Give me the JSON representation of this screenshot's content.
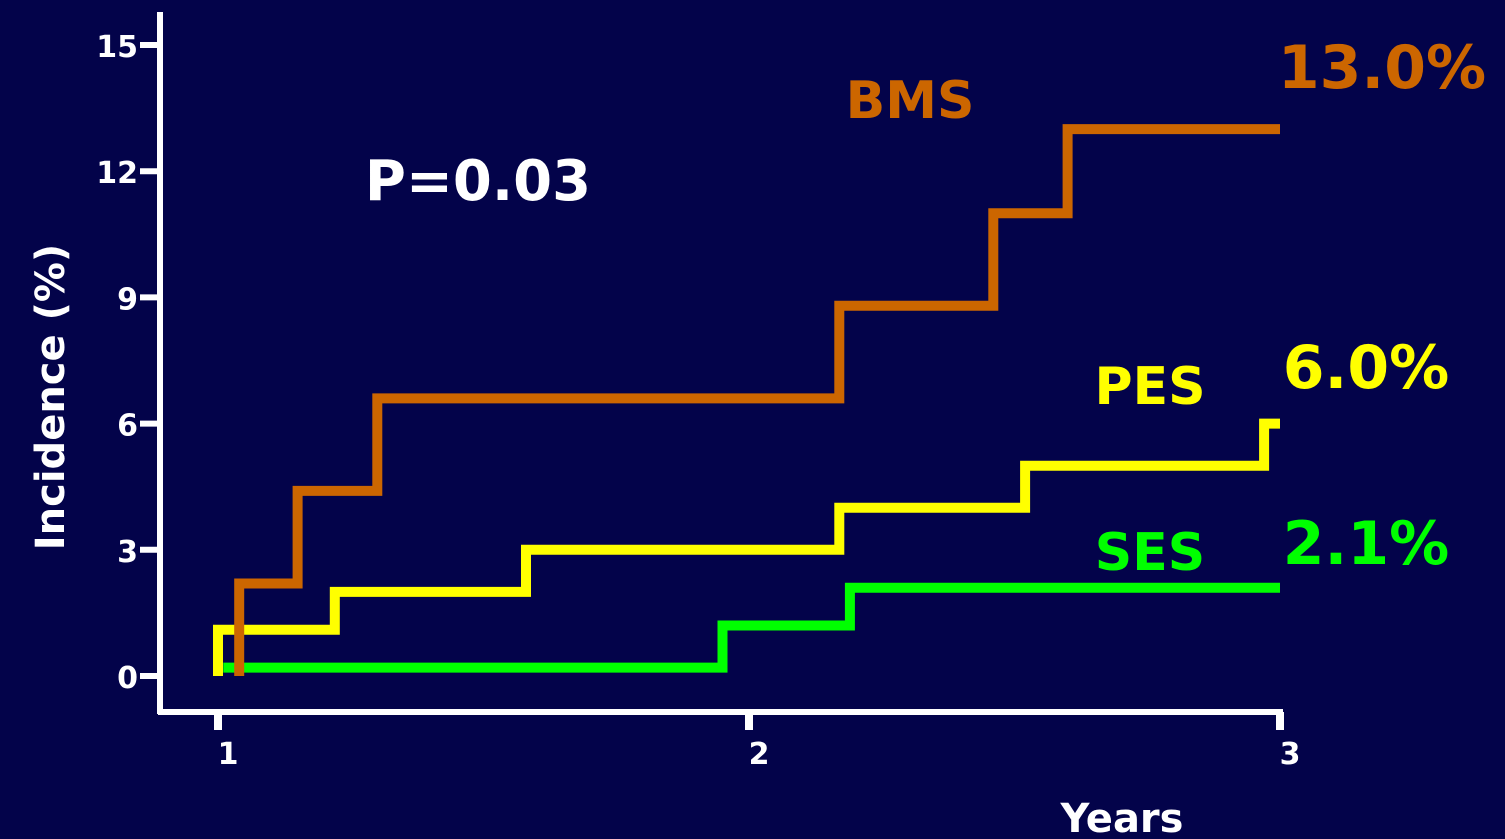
{
  "chart_data": {
    "type": "line",
    "step": true,
    "xlabel": "Years",
    "ylabel": "Incidence (%)",
    "xlim": [
      1,
      3
    ],
    "ylim": [
      0,
      15
    ],
    "xticks": [
      1,
      2,
      3
    ],
    "xtick_labels": [
      "1",
      "2",
      "3"
    ],
    "yticks": [
      0,
      3,
      6,
      9,
      12,
      15
    ],
    "ytick_labels": [
      "0",
      "3",
      "6",
      "9",
      "12",
      "15"
    ],
    "grid": false,
    "annotations": [
      {
        "text": "P=0.03"
      }
    ],
    "series": [
      {
        "name": "BMS",
        "color": "#cc6600",
        "end_label": "13.0%",
        "x": [
          1.04,
          1.04,
          1.15,
          1.15,
          1.3,
          1.3,
          2.17,
          2.17,
          2.46,
          2.46,
          2.6,
          2.6,
          3.0
        ],
        "y": [
          0,
          2.2,
          2.2,
          4.4,
          4.4,
          6.6,
          6.6,
          8.8,
          8.8,
          11.0,
          11.0,
          13.0,
          13.0
        ]
      },
      {
        "name": "PES",
        "color": "#ffff00",
        "end_label": "6.0%",
        "x": [
          1.0,
          1.0,
          1.22,
          1.22,
          1.58,
          1.58,
          2.17,
          2.17,
          2.52,
          2.52,
          2.97,
          2.97,
          3.0
        ],
        "y": [
          0,
          1.1,
          1.1,
          2.0,
          2.0,
          3.0,
          3.0,
          4.0,
          4.0,
          5.0,
          5.0,
          6.0,
          6.0
        ]
      },
      {
        "name": "SES",
        "color": "#00ff00",
        "end_label": "2.1%",
        "x": [
          1.01,
          1.95,
          1.95,
          2.19,
          2.19,
          3.0
        ],
        "y": [
          0.2,
          0.2,
          1.2,
          1.2,
          2.1,
          2.1
        ]
      }
    ]
  }
}
